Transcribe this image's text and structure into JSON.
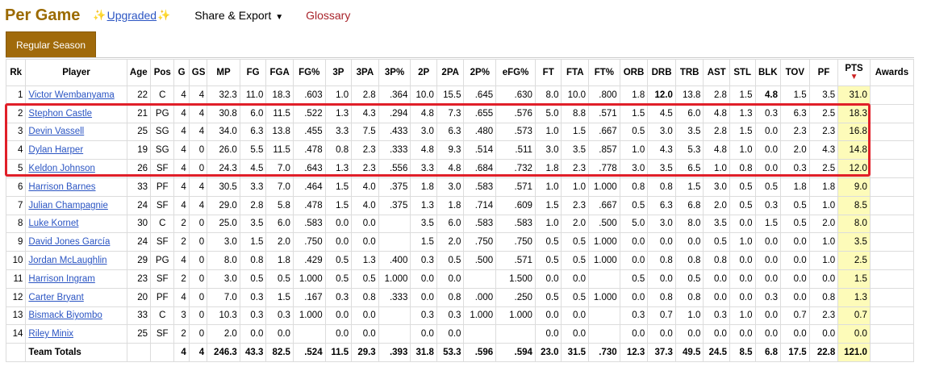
{
  "header": {
    "title": "Per Game",
    "sparkle": "✨",
    "upgraded": "Upgraded",
    "share_export": "Share & Export",
    "caret": "▼",
    "glossary": "Glossary"
  },
  "tabs": {
    "regular_season": "Regular Season"
  },
  "columns": [
    "Rk",
    "Player",
    "Age",
    "Pos",
    "G",
    "GS",
    "MP",
    "FG",
    "FGA",
    "FG%",
    "3P",
    "3PA",
    "3P%",
    "2P",
    "2PA",
    "2P%",
    "eFG%",
    "FT",
    "FTA",
    "FT%",
    "ORB",
    "DRB",
    "TRB",
    "AST",
    "STL",
    "BLK",
    "TOV",
    "PF",
    "PTS",
    "Awards"
  ],
  "sort_indicator": "▼",
  "rows": [
    [
      "1",
      "Victor Wembanyama",
      "22",
      "C",
      "4",
      "4",
      "32.3",
      "11.0",
      "18.3",
      ".603",
      "1.0",
      "2.8",
      ".364",
      "10.0",
      "15.5",
      ".645",
      ".630",
      "8.0",
      "10.0",
      ".800",
      "1.8",
      "12.0",
      "13.8",
      "2.8",
      "1.5",
      "4.8",
      "1.5",
      "3.5",
      "31.0",
      ""
    ],
    [
      "2",
      "Stephon Castle",
      "21",
      "PG",
      "4",
      "4",
      "30.8",
      "6.0",
      "11.5",
      ".522",
      "1.3",
      "4.3",
      ".294",
      "4.8",
      "7.3",
      ".655",
      ".576",
      "5.0",
      "8.8",
      ".571",
      "1.5",
      "4.5",
      "6.0",
      "4.8",
      "1.3",
      "0.3",
      "6.3",
      "2.5",
      "18.3",
      ""
    ],
    [
      "3",
      "Devin Vassell",
      "25",
      "SG",
      "4",
      "4",
      "34.0",
      "6.3",
      "13.8",
      ".455",
      "3.3",
      "7.5",
      ".433",
      "3.0",
      "6.3",
      ".480",
      ".573",
      "1.0",
      "1.5",
      ".667",
      "0.5",
      "3.0",
      "3.5",
      "2.8",
      "1.5",
      "0.0",
      "2.3",
      "2.3",
      "16.8",
      ""
    ],
    [
      "4",
      "Dylan Harper",
      "19",
      "SG",
      "4",
      "0",
      "26.0",
      "5.5",
      "11.5",
      ".478",
      "0.8",
      "2.3",
      ".333",
      "4.8",
      "9.3",
      ".514",
      ".511",
      "3.0",
      "3.5",
      ".857",
      "1.0",
      "4.3",
      "5.3",
      "4.8",
      "1.0",
      "0.0",
      "2.0",
      "4.3",
      "14.8",
      ""
    ],
    [
      "5",
      "Keldon Johnson",
      "26",
      "SF",
      "4",
      "0",
      "24.3",
      "4.5",
      "7.0",
      ".643",
      "1.3",
      "2.3",
      ".556",
      "3.3",
      "4.8",
      ".684",
      ".732",
      "1.8",
      "2.3",
      ".778",
      "3.0",
      "3.5",
      "6.5",
      "1.0",
      "0.8",
      "0.0",
      "0.3",
      "2.5",
      "12.0",
      ""
    ],
    [
      "6",
      "Harrison Barnes",
      "33",
      "PF",
      "4",
      "4",
      "30.5",
      "3.3",
      "7.0",
      ".464",
      "1.5",
      "4.0",
      ".375",
      "1.8",
      "3.0",
      ".583",
      ".571",
      "1.0",
      "1.0",
      "1.000",
      "0.8",
      "0.8",
      "1.5",
      "3.0",
      "0.5",
      "0.5",
      "1.8",
      "1.8",
      "9.0",
      ""
    ],
    [
      "7",
      "Julian Champagnie",
      "24",
      "SF",
      "4",
      "4",
      "29.0",
      "2.8",
      "5.8",
      ".478",
      "1.5",
      "4.0",
      ".375",
      "1.3",
      "1.8",
      ".714",
      ".609",
      "1.5",
      "2.3",
      ".667",
      "0.5",
      "6.3",
      "6.8",
      "2.0",
      "0.5",
      "0.3",
      "0.5",
      "1.0",
      "8.5",
      ""
    ],
    [
      "8",
      "Luke Kornet",
      "30",
      "C",
      "2",
      "0",
      "25.0",
      "3.5",
      "6.0",
      ".583",
      "0.0",
      "0.0",
      "",
      "3.5",
      "6.0",
      ".583",
      ".583",
      "1.0",
      "2.0",
      ".500",
      "5.0",
      "3.0",
      "8.0",
      "3.5",
      "0.0",
      "1.5",
      "0.5",
      "2.0",
      "8.0",
      ""
    ],
    [
      "9",
      "David Jones García",
      "24",
      "SF",
      "2",
      "0",
      "3.0",
      "1.5",
      "2.0",
      ".750",
      "0.0",
      "0.0",
      "",
      "1.5",
      "2.0",
      ".750",
      ".750",
      "0.5",
      "0.5",
      "1.000",
      "0.0",
      "0.0",
      "0.0",
      "0.5",
      "1.0",
      "0.0",
      "0.0",
      "1.0",
      "3.5",
      ""
    ],
    [
      "10",
      "Jordan McLaughlin",
      "29",
      "PG",
      "4",
      "0",
      "8.0",
      "0.8",
      "1.8",
      ".429",
      "0.5",
      "1.3",
      ".400",
      "0.3",
      "0.5",
      ".500",
      ".571",
      "0.5",
      "0.5",
      "1.000",
      "0.0",
      "0.8",
      "0.8",
      "0.8",
      "0.0",
      "0.0",
      "0.0",
      "1.0",
      "2.5",
      ""
    ],
    [
      "11",
      "Harrison Ingram",
      "23",
      "SF",
      "2",
      "0",
      "3.0",
      "0.5",
      "0.5",
      "1.000",
      "0.5",
      "0.5",
      "1.000",
      "0.0",
      "0.0",
      "",
      "1.500",
      "0.0",
      "0.0",
      "",
      "0.5",
      "0.0",
      "0.5",
      "0.0",
      "0.0",
      "0.0",
      "0.0",
      "0.0",
      "1.5",
      ""
    ],
    [
      "12",
      "Carter Bryant",
      "20",
      "PF",
      "4",
      "0",
      "7.0",
      "0.3",
      "1.5",
      ".167",
      "0.3",
      "0.8",
      ".333",
      "0.0",
      "0.8",
      ".000",
      ".250",
      "0.5",
      "0.5",
      "1.000",
      "0.0",
      "0.8",
      "0.8",
      "0.0",
      "0.0",
      "0.3",
      "0.0",
      "0.8",
      "1.3",
      ""
    ],
    [
      "13",
      "Bismack Biyombo",
      "33",
      "C",
      "3",
      "0",
      "10.3",
      "0.3",
      "0.3",
      "1.000",
      "0.0",
      "0.0",
      "",
      "0.3",
      "0.3",
      "1.000",
      "1.000",
      "0.0",
      "0.0",
      "",
      "0.3",
      "0.7",
      "1.0",
      "0.3",
      "1.0",
      "0.0",
      "0.7",
      "2.3",
      "0.7",
      ""
    ],
    [
      "14",
      "Riley Minix",
      "25",
      "SF",
      "2",
      "0",
      "2.0",
      "0.0",
      "0.0",
      "",
      "0.0",
      "0.0",
      "",
      "0.0",
      "0.0",
      "",
      "",
      "0.0",
      "0.0",
      "",
      "0.0",
      "0.0",
      "0.0",
      "0.0",
      "0.0",
      "0.0",
      "0.0",
      "0.0",
      "0.0",
      ""
    ]
  ],
  "totals": [
    "",
    "Team Totals",
    "",
    "",
    "4",
    "4",
    "246.3",
    "43.3",
    "82.5",
    ".524",
    "11.5",
    "29.3",
    ".393",
    "31.8",
    "53.3",
    ".596",
    ".594",
    "23.0",
    "31.5",
    ".730",
    "12.3",
    "37.3",
    "49.5",
    "24.5",
    "8.5",
    "6.8",
    "17.5",
    "22.8",
    "121.0",
    ""
  ],
  "colors": {
    "title": "#9b6a00",
    "tab": "#a06a0b",
    "highlight": "#e01f29",
    "pts_bg": "#fdfbb9",
    "link": "#2b55c3"
  }
}
